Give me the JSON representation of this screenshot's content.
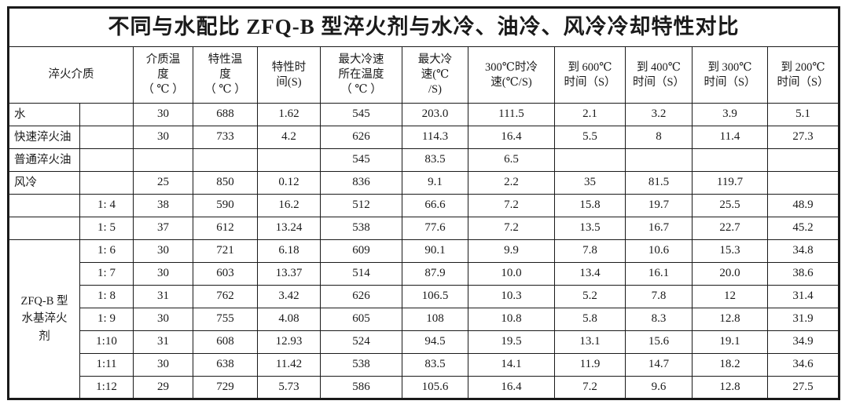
{
  "title": "不同与水配比 ZFQ-B 型淬火剂与水冷、油冷、风冷冷却特性对比",
  "table": {
    "corner_header": "淬火介质",
    "headers": [
      "介质温\n度\n（ ℃ ）",
      "特性温\n度\n（ ℃ ）",
      "特性时\n间(S)",
      "最大冷速\n所在温度\n（ ℃ ）",
      "最大冷\n速(℃\n/S)",
      "300℃时冷\n速(℃/S)",
      "到 600℃\n时间（S）",
      "到 400℃\n时间（S）",
      "到 300℃\n时间（S）",
      "到 200℃\n时间（S）"
    ],
    "rows": [
      {
        "medium": "水",
        "ratio": "",
        "values": [
          "30",
          "688",
          "1.62",
          "545",
          "203.0",
          "111.5",
          "2.1",
          "3.2",
          "3.9",
          "5.1"
        ]
      },
      {
        "medium": "快速淬火油",
        "ratio": "",
        "values": [
          "30",
          "733",
          "4.2",
          "626",
          "114.3",
          "16.4",
          "5.5",
          "8",
          "11.4",
          "27.3"
        ]
      },
      {
        "medium": "普通淬火油",
        "ratio": "",
        "values": [
          "",
          "",
          "",
          "545",
          "83.5",
          "6.5",
          "",
          "",
          "",
          ""
        ]
      },
      {
        "medium": "风冷",
        "ratio": "",
        "values": [
          "25",
          "850",
          "0.12",
          "836",
          "9.1",
          "2.2",
          "35",
          "81.5",
          "119.7",
          ""
        ]
      },
      {
        "medium": "",
        "ratio": "1: 4",
        "values": [
          "38",
          "590",
          "16.2",
          "512",
          "66.6",
          "7.2",
          "15.8",
          "19.7",
          "25.5",
          "48.9"
        ]
      },
      {
        "medium": "",
        "ratio": "1: 5",
        "values": [
          "37",
          "612",
          "13.24",
          "538",
          "77.6",
          "7.2",
          "13.5",
          "16.7",
          "22.7",
          "45.2"
        ]
      },
      {
        "medium": "ZFQ-B 型水基淬火剂",
        "medium_span": 7,
        "ratio": "1: 6",
        "values": [
          "30",
          "721",
          "6.18",
          "609",
          "90.1",
          "9.9",
          "7.8",
          "10.6",
          "15.3",
          "34.8"
        ]
      },
      {
        "medium": null,
        "ratio": "1: 7",
        "values": [
          "30",
          "603",
          "13.37",
          "514",
          "87.9",
          "10.0",
          "13.4",
          "16.1",
          "20.0",
          "38.6"
        ]
      },
      {
        "medium": null,
        "ratio": "1: 8",
        "values": [
          "31",
          "762",
          "3.42",
          "626",
          "106.5",
          "10.3",
          "5.2",
          "7.8",
          "12",
          "31.4"
        ]
      },
      {
        "medium": null,
        "ratio": "1: 9",
        "values": [
          "30",
          "755",
          "4.08",
          "605",
          "108",
          "10.8",
          "5.8",
          "8.3",
          "12.8",
          "31.9"
        ]
      },
      {
        "medium": null,
        "ratio": "1:10",
        "values": [
          "31",
          "608",
          "12.93",
          "524",
          "94.5",
          "19.5",
          "13.1",
          "15.6",
          "19.1",
          "34.9"
        ]
      },
      {
        "medium": null,
        "ratio": "1:11",
        "values": [
          "30",
          "638",
          "11.42",
          "538",
          "83.5",
          "14.1",
          "11.9",
          "14.7",
          "18.2",
          "34.6"
        ]
      },
      {
        "medium": null,
        "ratio": "1:12",
        "values": [
          "29",
          "729",
          "5.73",
          "586",
          "105.6",
          "16.4",
          "7.2",
          "9.6",
          "12.8",
          "27.5"
        ]
      }
    ]
  }
}
